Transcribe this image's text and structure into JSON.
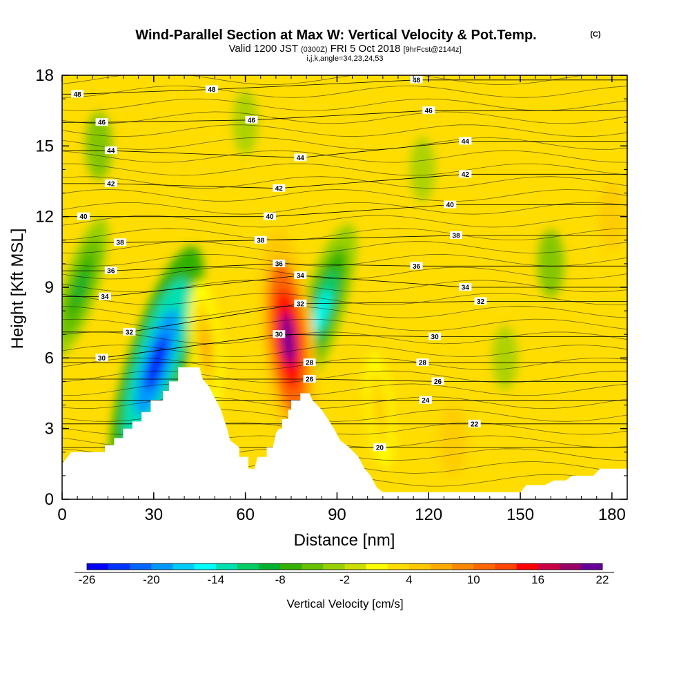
{
  "header": {
    "title": "Wind-Parallel Section at Max W: Vertical Velocity & Pot.Temp.",
    "copyright": "(C)",
    "subtitle_prefix": "Valid 1200 JST",
    "subtitle_utc": "(0300Z)",
    "subtitle_date": "FRI 5 Oct 2018",
    "subtitle_fcst": "[9hrFcst@2144z]",
    "indices": "i,j,k,angle=34,23,24,53"
  },
  "chart_data": {
    "type": "heatmap",
    "xlabel": "Distance [nm]",
    "ylabel": "Height [Kft MSL]",
    "xlim": [
      0,
      185
    ],
    "ylim": [
      0,
      18
    ],
    "xticks": [
      "0",
      "30",
      "60",
      "90",
      "120",
      "150",
      "180"
    ],
    "yticks": [
      "0",
      "3",
      "6",
      "9",
      "12",
      "15",
      "18"
    ],
    "colorbar": {
      "label": "Vertical Velocity [cm/s]",
      "tick_labels": [
        "-26",
        "-20",
        "-14",
        "-8",
        "-2",
        "4",
        "10",
        "16",
        "22"
      ],
      "colors": [
        "#0000ff",
        "#0033ff",
        "#0066ff",
        "#0099ff",
        "#00ccff",
        "#00ffff",
        "#00e0b0",
        "#00cc66",
        "#00b030",
        "#33b000",
        "#66c000",
        "#99d000",
        "#ccdd00",
        "#ffff00",
        "#ffdd00",
        "#ffc800",
        "#ffaa00",
        "#ff8800",
        "#ff6600",
        "#ff4400",
        "#ff0000",
        "#cc0044",
        "#990066",
        "#660099"
      ]
    },
    "updrafts": [
      {
        "x": 74,
        "y": 6.8,
        "value": 22
      },
      {
        "x": 47,
        "y": 6.5,
        "value": 8
      },
      {
        "x": 104,
        "y": 3.8,
        "value": 5
      }
    ],
    "downdrafts": [
      {
        "x": 31,
        "y": 5.8,
        "value": -26
      },
      {
        "x": 85,
        "y": 8.0,
        "value": -16
      },
      {
        "x": 6,
        "y": 9.0,
        "value": -10
      }
    ],
    "theta_contour_labels": [
      {
        "text": "48",
        "x": 5,
        "y": 17.2
      },
      {
        "text": "46",
        "x": 13,
        "y": 16.0
      },
      {
        "text": "44",
        "x": 16,
        "y": 14.8
      },
      {
        "text": "42",
        "x": 16,
        "y": 13.4
      },
      {
        "text": "40",
        "x": 7,
        "y": 12.0
      },
      {
        "text": "38",
        "x": 19,
        "y": 10.9
      },
      {
        "text": "36",
        "x": 16,
        "y": 9.7
      },
      {
        "text": "34",
        "x": 14,
        "y": 8.6
      },
      {
        "text": "32",
        "x": 22,
        "y": 7.1
      },
      {
        "text": "30",
        "x": 13,
        "y": 6.0
      },
      {
        "text": "48",
        "x": 49,
        "y": 17.4
      },
      {
        "text": "46",
        "x": 62,
        "y": 16.1
      },
      {
        "text": "44",
        "x": 78,
        "y": 14.5
      },
      {
        "text": "42",
        "x": 71,
        "y": 13.2
      },
      {
        "text": "40",
        "x": 68,
        "y": 12.0
      },
      {
        "text": "38",
        "x": 65,
        "y": 11.0
      },
      {
        "text": "36",
        "x": 71,
        "y": 10.0
      },
      {
        "text": "34",
        "x": 78,
        "y": 9.5
      },
      {
        "text": "32",
        "x": 78,
        "y": 8.3
      },
      {
        "text": "30",
        "x": 71,
        "y": 7.0
      },
      {
        "text": "28",
        "x": 81,
        "y": 5.8
      },
      {
        "text": "26",
        "x": 81,
        "y": 5.1
      },
      {
        "text": "48",
        "x": 116,
        "y": 17.8
      },
      {
        "text": "46",
        "x": 120,
        "y": 16.5
      },
      {
        "text": "44",
        "x": 132,
        "y": 15.2
      },
      {
        "text": "42",
        "x": 132,
        "y": 13.8
      },
      {
        "text": "40",
        "x": 127,
        "y": 12.5
      },
      {
        "text": "38",
        "x": 129,
        "y": 11.2
      },
      {
        "text": "36",
        "x": 116,
        "y": 9.9
      },
      {
        "text": "34",
        "x": 132,
        "y": 9.0
      },
      {
        "text": "32",
        "x": 137,
        "y": 8.4
      },
      {
        "text": "30",
        "x": 122,
        "y": 6.9
      },
      {
        "text": "28",
        "x": 118,
        "y": 5.8
      },
      {
        "text": "26",
        "x": 123,
        "y": 5.0
      },
      {
        "text": "24",
        "x": 119,
        "y": 4.2
      },
      {
        "text": "22",
        "x": 135,
        "y": 3.2
      },
      {
        "text": "20",
        "x": 104,
        "y": 2.2
      }
    ],
    "terrain_profile": [
      [
        0,
        1.5
      ],
      [
        3,
        2.0
      ],
      [
        10,
        2.0
      ],
      [
        12,
        2.0
      ],
      [
        14,
        2.0
      ],
      [
        14,
        2.3
      ],
      [
        17,
        2.3
      ],
      [
        17,
        2.6
      ],
      [
        20,
        2.6
      ],
      [
        20,
        3.0
      ],
      [
        23,
        3.0
      ],
      [
        23,
        3.3
      ],
      [
        26,
        3.3
      ],
      [
        26,
        3.7
      ],
      [
        29,
        3.7
      ],
      [
        29,
        4.2
      ],
      [
        33,
        4.2
      ],
      [
        33,
        4.6
      ],
      [
        35,
        4.6
      ],
      [
        35,
        5.0
      ],
      [
        38,
        5.0
      ],
      [
        38,
        5.6
      ],
      [
        45,
        5.6
      ],
      [
        46,
        5.1
      ],
      [
        48,
        4.8
      ],
      [
        50,
        4.3
      ],
      [
        52,
        3.8
      ],
      [
        54,
        3.0
      ],
      [
        55,
        2.5
      ],
      [
        58,
        2.2
      ],
      [
        58,
        1.8
      ],
      [
        61,
        1.8
      ],
      [
        61,
        1.3
      ],
      [
        63,
        1.3
      ],
      [
        64,
        1.8
      ],
      [
        67,
        1.8
      ],
      [
        67,
        2.2
      ],
      [
        69,
        2.2
      ],
      [
        70,
        2.8
      ],
      [
        71,
        3.0
      ],
      [
        72,
        3.0
      ],
      [
        72,
        3.4
      ],
      [
        74,
        3.4
      ],
      [
        74,
        3.8
      ],
      [
        75,
        3.8
      ],
      [
        75,
        4.2
      ],
      [
        78,
        4.2
      ],
      [
        78,
        4.5
      ],
      [
        81,
        4.5
      ],
      [
        82,
        4.2
      ],
      [
        85,
        3.8
      ],
      [
        87,
        3.4
      ],
      [
        89,
        3.0
      ],
      [
        91,
        2.5
      ],
      [
        94,
        2.2
      ],
      [
        97,
        1.8
      ],
      [
        99,
        1.3
      ],
      [
        101,
        1.0
      ],
      [
        103,
        0.5
      ],
      [
        105,
        0.3
      ],
      [
        140,
        0.3
      ],
      [
        145,
        0.3
      ],
      [
        150,
        0.3
      ],
      [
        152,
        0.6
      ],
      [
        158,
        0.6
      ],
      [
        161,
        0.8
      ],
      [
        165,
        0.8
      ],
      [
        167,
        1.0
      ],
      [
        174,
        1.0
      ],
      [
        176,
        1.3
      ],
      [
        185,
        1.3
      ]
    ]
  }
}
